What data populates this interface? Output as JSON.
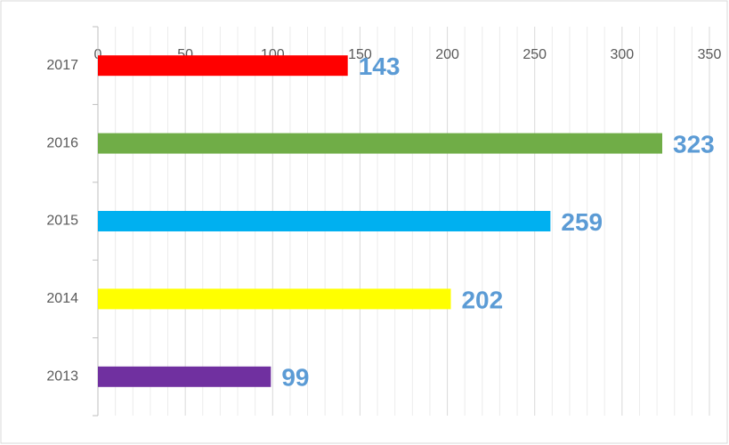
{
  "chart_data": {
    "type": "barh",
    "categories": [
      "2017",
      "2016",
      "2015",
      "2014",
      "2013"
    ],
    "values": [
      143,
      323,
      259,
      202,
      99
    ],
    "colors": [
      "#ff0000",
      "#70ad47",
      "#00b0f0",
      "#ffff00",
      "#7030a0"
    ],
    "xlim": [
      0,
      350
    ],
    "xticks": [
      0,
      50,
      100,
      150,
      200,
      250,
      300,
      350
    ],
    "grid": true,
    "minor_grid": true
  }
}
